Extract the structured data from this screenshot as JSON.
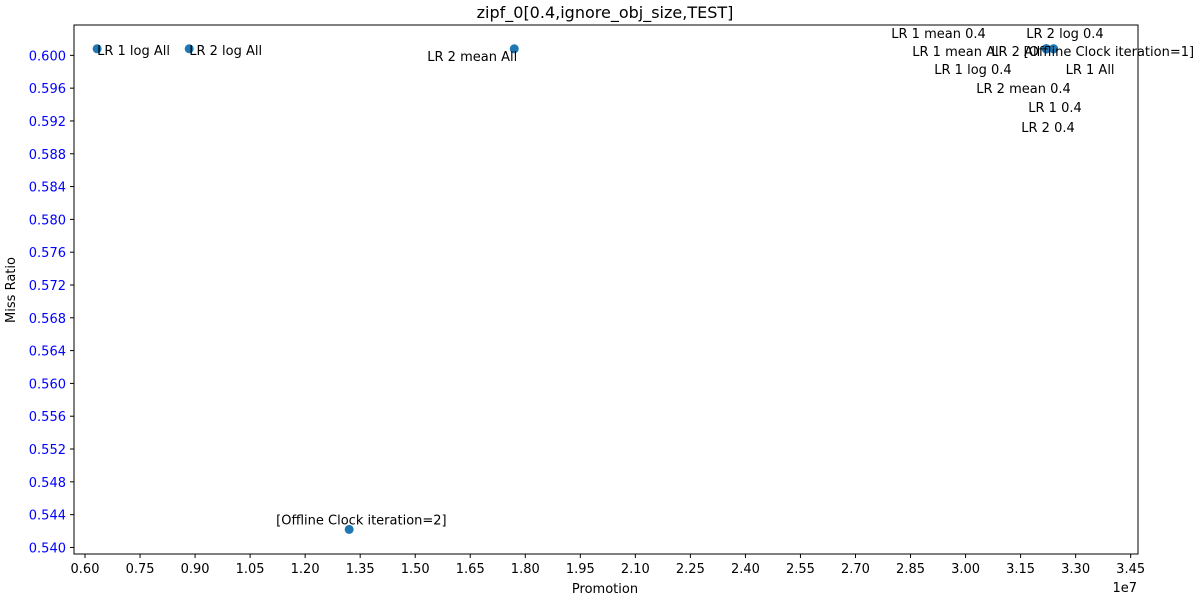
{
  "chart_data": {
    "type": "scatter",
    "title": "zipf_0[0.4,ignore_obj_size,TEST]",
    "xlabel": "Promotion",
    "ylabel": "Miss Ratio",
    "x_multiplier_label": "1e7",
    "xlim": [
      0.57,
      3.47
    ],
    "ylim": [
      0.5392,
      0.6037
    ],
    "xticks": [
      "0.60",
      "0.75",
      "0.90",
      "1.05",
      "1.20",
      "1.35",
      "1.50",
      "1.65",
      "1.80",
      "1.95",
      "2.10",
      "2.25",
      "2.40",
      "2.55",
      "2.70",
      "2.85",
      "3.00",
      "3.15",
      "3.30",
      "3.45"
    ],
    "yticks": [
      "0.540",
      "0.544",
      "0.548",
      "0.552",
      "0.556",
      "0.560",
      "0.564",
      "0.568",
      "0.572",
      "0.576",
      "0.580",
      "0.584",
      "0.588",
      "0.592",
      "0.596",
      "0.600"
    ],
    "grid": false,
    "colors": {
      "point": "#1f77b4",
      "ytick_label": "#0000ff",
      "text": "#000000"
    },
    "points": [
      {
        "label": "LR 1 log All",
        "x": 0.633,
        "y": 0.6008
      },
      {
        "label": "LR 2 log All",
        "x": 0.884,
        "y": 0.6008
      },
      {
        "label": "LR 2 mean All",
        "x": 1.77,
        "y": 0.6008
      },
      {
        "label": "[Offline Clock iteration=2]",
        "x": 1.32,
        "y": 0.5422
      },
      {
        "label": "LR 1 mean 0.4",
        "x": 3.22,
        "y": 0.6008
      },
      {
        "label": "LR 2 log 0.4",
        "x": 3.22,
        "y": 0.6008
      },
      {
        "label": "LR 1 mean All",
        "x": 3.22,
        "y": 0.6008
      },
      {
        "label": "LR 2 All",
        "x": 3.22,
        "y": 0.6008
      },
      {
        "label": "[Offline Clock iteration=1]",
        "x": 3.24,
        "y": 0.6008
      },
      {
        "label": "LR 1 log 0.4",
        "x": 3.22,
        "y": 0.6008
      },
      {
        "label": "LR 1 All",
        "x": 3.24,
        "y": 0.6008
      },
      {
        "label": "LR 2 mean 0.4",
        "x": 3.22,
        "y": 0.6008
      },
      {
        "label": "LR 1 0.4",
        "x": 3.22,
        "y": 0.6008
      },
      {
        "label": "LR 2 0.4",
        "x": 3.22,
        "y": 0.6008
      }
    ]
  }
}
